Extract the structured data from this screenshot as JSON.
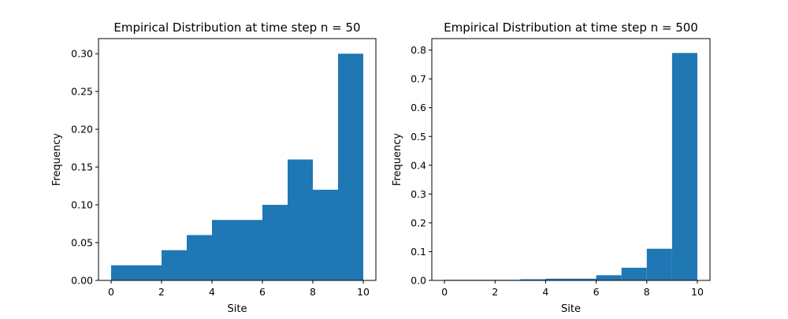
{
  "chart_data": [
    {
      "type": "bar",
      "title": "Empirical Distribution at time step n = 50",
      "xlabel": "Site",
      "ylabel": "Frequency",
      "xlim": [
        -0.5,
        10.5
      ],
      "ylim": [
        0,
        0.32
      ],
      "xticks": [
        "0",
        "2",
        "4",
        "6",
        "8",
        "10"
      ],
      "yticks": [
        "0.00",
        "0.05",
        "0.10",
        "0.15",
        "0.20",
        "0.25",
        "0.30"
      ],
      "bins": [
        [
          0,
          1
        ],
        [
          1,
          2
        ],
        [
          2,
          3
        ],
        [
          3,
          4
        ],
        [
          4,
          5
        ],
        [
          5,
          6
        ],
        [
          6,
          7
        ],
        [
          7,
          8
        ],
        [
          8,
          9
        ],
        [
          9,
          10
        ]
      ],
      "values": [
        0.02,
        0.02,
        0.04,
        0.06,
        0.08,
        0.08,
        0.1,
        0.16,
        0.12,
        0.3
      ],
      "color": "#1f77b4",
      "grid": false
    },
    {
      "type": "bar",
      "title": "Empirical Distribution at time step n = 500",
      "xlabel": "Site",
      "ylabel": "Frequency",
      "xlim": [
        -0.5,
        10.5
      ],
      "ylim": [
        0,
        0.84
      ],
      "xticks": [
        "0",
        "2",
        "4",
        "6",
        "8",
        "10"
      ],
      "yticks": [
        "0.0",
        "0.1",
        "0.2",
        "0.3",
        "0.4",
        "0.5",
        "0.6",
        "0.7",
        "0.8"
      ],
      "bins": [
        [
          0,
          1
        ],
        [
          1,
          2
        ],
        [
          2,
          3
        ],
        [
          3,
          4
        ],
        [
          4,
          5
        ],
        [
          5,
          6
        ],
        [
          6,
          7
        ],
        [
          7,
          8
        ],
        [
          8,
          9
        ],
        [
          9,
          10
        ]
      ],
      "values": [
        0.002,
        0.002,
        0.002,
        0.004,
        0.006,
        0.006,
        0.018,
        0.044,
        0.11,
        0.79
      ],
      "color": "#1f77b4",
      "grid": false
    }
  ]
}
